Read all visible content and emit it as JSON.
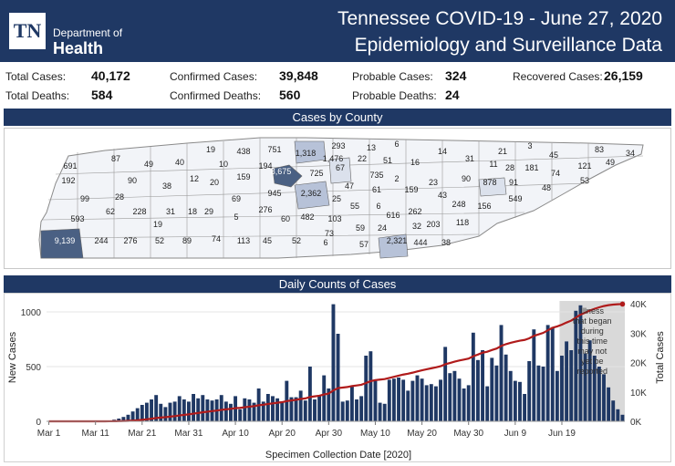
{
  "header": {
    "logo_text": "TN",
    "dept_line1": "Department of",
    "dept_line2": "Health",
    "title_line1": "Tennessee COVID-19 - June 27, 2020",
    "title_line2": "Epidemiology and Surveillance Data",
    "background_color": "#1f3864"
  },
  "stats": {
    "total_cases_label": "Total Cases:",
    "total_cases": "40,172",
    "confirmed_cases_label": "Confirmed Cases:",
    "confirmed_cases": "39,848",
    "probable_cases_label": "Probable Cases:",
    "probable_cases": "324",
    "recovered_cases_label": "Recovered Cases:",
    "recovered_cases": "26,159",
    "total_deaths_label": "Total Deaths:",
    "total_deaths": "584",
    "confirmed_deaths_label": "Confirmed Deaths:",
    "confirmed_deaths": "560",
    "probable_deaths_label": "Probable Deaths:",
    "probable_deaths": "24"
  },
  "sections": {
    "cases_by_county": "Cases by County",
    "daily_counts": "Daily Counts of Cases"
  },
  "county_map": {
    "labels": [
      "19",
      "438",
      "751",
      "1,318",
      "293",
      "13",
      "6",
      "14",
      "21",
      "3",
      "83",
      "691",
      "87",
      "49",
      "40",
      "10",
      "194",
      "8,675",
      "1,476",
      "22",
      "51",
      "16",
      "31",
      "11",
      "45",
      "121",
      "49",
      "34",
      "192",
      "90",
      "38",
      "12",
      "20",
      "159",
      "725",
      "67",
      "735",
      "2",
      "28",
      "181",
      "74",
      "53",
      "99",
      "28",
      "69",
      "945",
      "2,362",
      "47",
      "61",
      "159",
      "23",
      "90",
      "878",
      "91",
      "48",
      "593",
      "62",
      "228",
      "31",
      "18",
      "29",
      "276",
      "25",
      "55",
      "6",
      "616",
      "43",
      "549",
      "19",
      "5",
      "60",
      "482",
      "103",
      "32",
      "262",
      "248",
      "156",
      "9,139",
      "244",
      "276",
      "52",
      "89",
      "74",
      "113",
      "45",
      "52",
      "6",
      "73",
      "59",
      "24",
      "57",
      "2,321",
      "444",
      "203",
      "118",
      "38"
    ],
    "highlight_colors": {
      "high": "#4a6083",
      "mid": "#b7c2d8",
      "low": "#eef1f6"
    }
  },
  "chart_data": {
    "type": "bar",
    "xlabel": "Specimen Collection Date [2020]",
    "ylabel_left": "New Cases",
    "ylabel_right": "Total Cases",
    "x_tick_labels": [
      "Mar 1",
      "Mar 11",
      "Mar 21",
      "Mar 31",
      "Apr 10",
      "Apr 20",
      "Apr 30",
      "May 10",
      "May 20",
      "May 30",
      "Jun 9",
      "Jun 19"
    ],
    "y_left_ticks": [
      "0",
      "500",
      "1000"
    ],
    "y_right_ticks": [
      "0K",
      "10K",
      "20K",
      "30K",
      "40K"
    ],
    "ylim_left": [
      0,
      1100
    ],
    "ylim_right": [
      0,
      41000
    ],
    "start_date": "2020-03-01",
    "annotation": "Illness that began during this time may not yet be reported",
    "bar_color": "#1f3864",
    "line_color": "#b01b1b",
    "series": [
      {
        "name": "New Cases",
        "kind": "bar",
        "values": [
          0,
          0,
          0,
          0,
          0,
          0,
          0,
          0,
          0,
          0,
          1,
          2,
          5,
          8,
          15,
          25,
          40,
          60,
          90,
          120,
          150,
          170,
          200,
          240,
          160,
          130,
          170,
          180,
          230,
          200,
          180,
          250,
          210,
          240,
          200,
          190,
          200,
          240,
          180,
          160,
          230,
          110,
          210,
          200,
          170,
          300,
          180,
          250,
          230,
          210,
          180,
          370,
          220,
          220,
          280,
          190,
          500,
          200,
          230,
          420,
          300,
          1070,
          800,
          180,
          190,
          320,
          200,
          230,
          600,
          640,
          370,
          170,
          160,
          380,
          390,
          400,
          380,
          280,
          370,
          420,
          390,
          330,
          340,
          320,
          380,
          680,
          440,
          460,
          390,
          300,
          330,
          810,
          560,
          650,
          320,
          580,
          510,
          880,
          610,
          460,
          370,
          360,
          250,
          550,
          840,
          510,
          500,
          880,
          860,
          460,
          600,
          730,
          650,
          1010,
          1060,
          620,
          740,
          600,
          500,
          430,
          310,
          190,
          110,
          60
        ]
      },
      {
        "name": "Total Cases",
        "kind": "line",
        "values": [
          0,
          0,
          0,
          0,
          0,
          0,
          0,
          0,
          0,
          0,
          1,
          3,
          8,
          16,
          31,
          56,
          96,
          156,
          246,
          366,
          516,
          686,
          886,
          1126,
          1286,
          1416,
          1586,
          1766,
          1996,
          2196,
          2376,
          2626,
          2836,
          3076,
          3276,
          3466,
          3666,
          3906,
          4086,
          4246,
          4476,
          4586,
          4796,
          4996,
          5166,
          5466,
          5646,
          5896,
          6126,
          6336,
          6516,
          6886,
          7106,
          7326,
          7606,
          7796,
          8296,
          8496,
          8726,
          9146,
          9446,
          10516,
          11316,
          11496,
          11686,
          12006,
          12206,
          12436,
          13036,
          13676,
          14046,
          14216,
          14376,
          14756,
          15146,
          15546,
          15926,
          16206,
          16576,
          16996,
          17386,
          17716,
          18056,
          18376,
          18756,
          19436,
          19876,
          20336,
          20726,
          21026,
          21356,
          22166,
          22726,
          23376,
          23696,
          24276,
          24786,
          25666,
          26276,
          26736,
          27106,
          27466,
          27716,
          28266,
          29106,
          29616,
          30116,
          30996,
          31856,
          32316,
          32916,
          33646,
          34296,
          35306,
          36366,
          36986,
          37726,
          38326,
          38826,
          39256,
          39566,
          39756,
          39866,
          39926
        ]
      }
    ]
  }
}
